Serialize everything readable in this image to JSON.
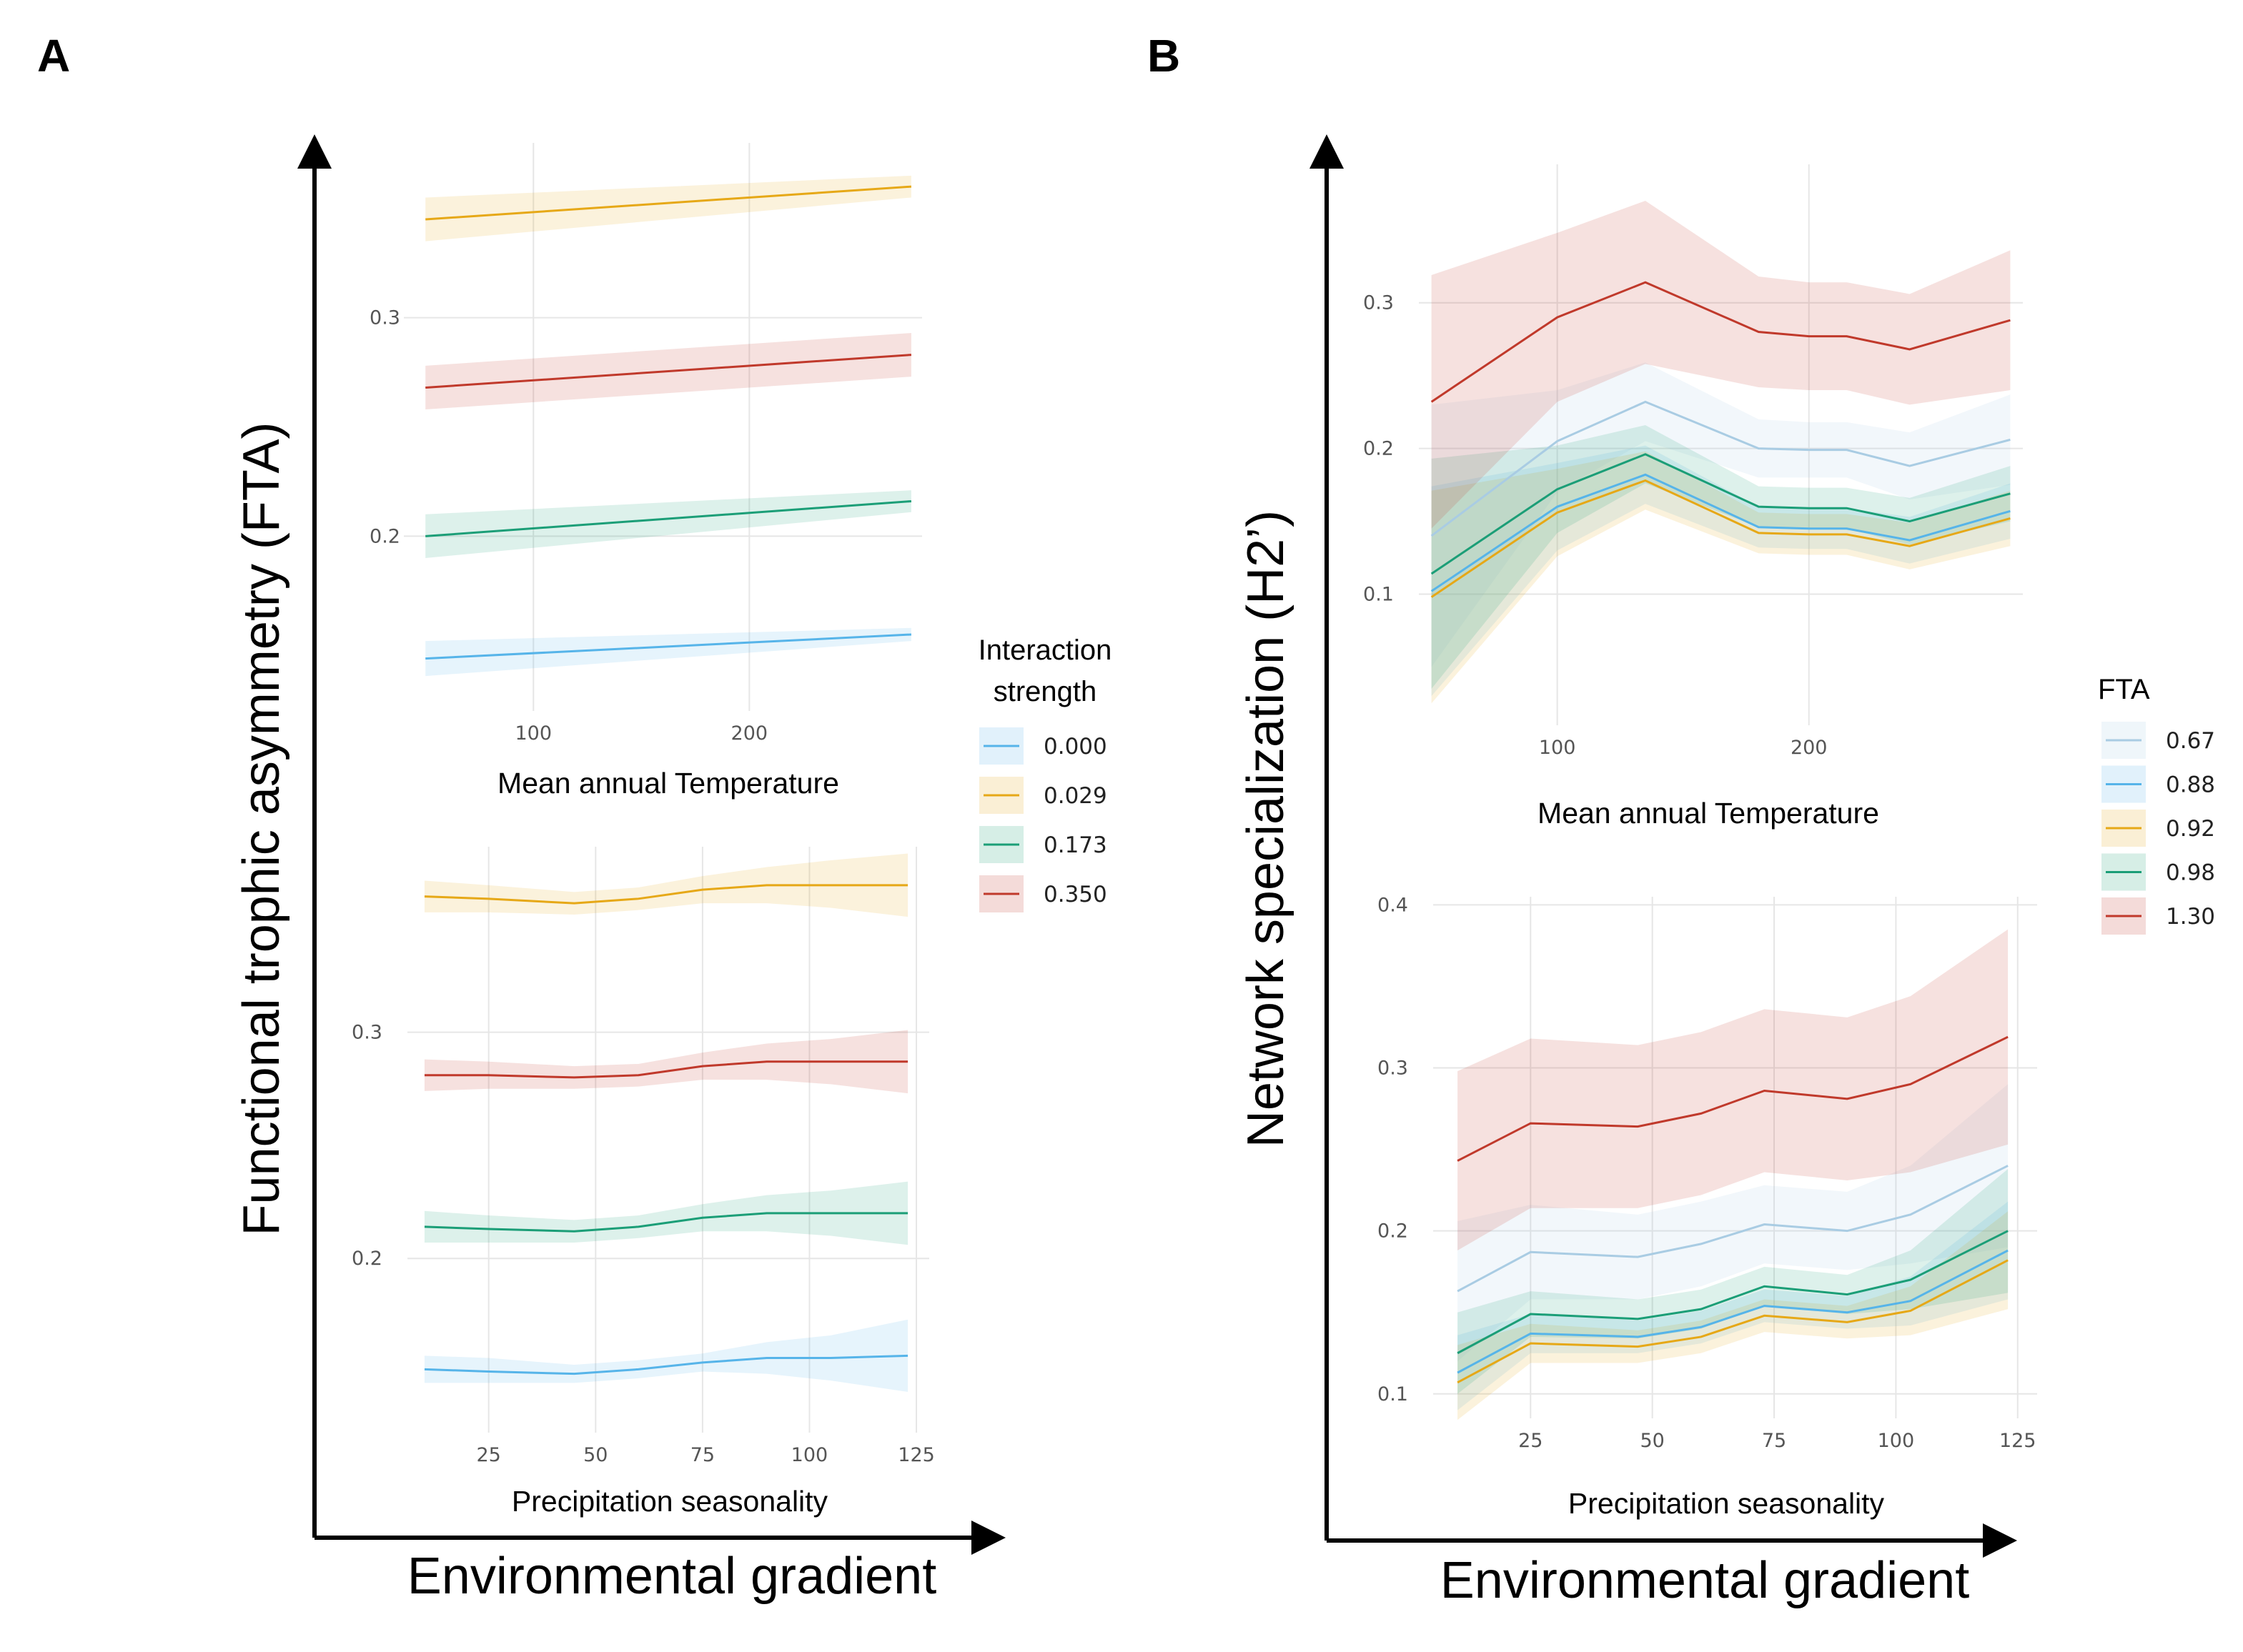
{
  "panels": {
    "A": {
      "letter": "A",
      "y_title": "Functional trophic asymmetry (FTA)",
      "x_title": "Environmental gradient",
      "legend_title": "Interaction strength",
      "legend": [
        {
          "label": "0.000",
          "color": "#56B4E9"
        },
        {
          "label": "0.029",
          "color": "#E6A817"
        },
        {
          "label": "0.173",
          "color": "#1B9E77"
        },
        {
          "label": "0.350",
          "color": "#C0392B"
        }
      ]
    },
    "B": {
      "letter": "B",
      "y_title": "Network specialization (H2’)",
      "x_title": "Environmental gradient",
      "legend_title": "FTA",
      "legend": [
        {
          "label": "0.67",
          "color": "#A9CCE3"
        },
        {
          "label": "0.88",
          "color": "#56B4E9"
        },
        {
          "label": "0.92",
          "color": "#E6A817"
        },
        {
          "label": "0.98",
          "color": "#1B9E77"
        },
        {
          "label": "1.30",
          "color": "#C0392B"
        }
      ]
    }
  },
  "chart_data": [
    {
      "type": "line",
      "panel": "A",
      "xlabel": "Mean annual Temperature",
      "xticks": [
        100,
        200
      ],
      "yticks": [
        0.2,
        0.3
      ],
      "xlim": [
        40,
        280
      ],
      "ylim": [
        0.12,
        0.38
      ],
      "x": [
        50,
        275
      ],
      "series": [
        {
          "name": "0.000",
          "color": "#56B4E9",
          "values": [
            0.144,
            0.155
          ],
          "lower": [
            0.136,
            0.152
          ],
          "upper": [
            0.152,
            0.158
          ]
        },
        {
          "name": "0.029",
          "color": "#E6A817",
          "values": [
            0.345,
            0.36
          ],
          "lower": [
            0.335,
            0.355
          ],
          "upper": [
            0.355,
            0.365
          ]
        },
        {
          "name": "0.173",
          "color": "#1B9E77",
          "values": [
            0.2,
            0.216
          ],
          "lower": [
            0.19,
            0.211
          ],
          "upper": [
            0.21,
            0.221
          ]
        },
        {
          "name": "0.350",
          "color": "#C0392B",
          "values": [
            0.268,
            0.283
          ],
          "lower": [
            0.258,
            0.273
          ],
          "upper": [
            0.278,
            0.293
          ]
        }
      ]
    },
    {
      "type": "line",
      "panel": "A",
      "xlabel": "Precipitation seasonality",
      "xticks": [
        25,
        50,
        75,
        100,
        125
      ],
      "yticks": [
        0.2,
        0.3
      ],
      "xlim": [
        6,
        128
      ],
      "ylim": [
        0.123,
        0.382
      ],
      "x": [
        10,
        25,
        45,
        60,
        75,
        90,
        105,
        123
      ],
      "series": [
        {
          "name": "0.000",
          "color": "#56B4E9",
          "values": [
            0.151,
            0.15,
            0.149,
            0.151,
            0.154,
            0.156,
            0.156,
            0.157
          ],
          "lower": [
            0.145,
            0.145,
            0.145,
            0.147,
            0.15,
            0.149,
            0.146,
            0.141
          ],
          "upper": [
            0.157,
            0.156,
            0.153,
            0.155,
            0.158,
            0.163,
            0.166,
            0.173
          ]
        },
        {
          "name": "0.029",
          "color": "#E6A817",
          "values": [
            0.36,
            0.359,
            0.357,
            0.359,
            0.363,
            0.365,
            0.365,
            0.365
          ],
          "lower": [
            0.353,
            0.353,
            0.352,
            0.354,
            0.357,
            0.357,
            0.355,
            0.351
          ],
          "upper": [
            0.367,
            0.365,
            0.362,
            0.364,
            0.369,
            0.373,
            0.376,
            0.379
          ]
        },
        {
          "name": "0.173",
          "color": "#1B9E77",
          "values": [
            0.214,
            0.213,
            0.212,
            0.214,
            0.218,
            0.22,
            0.22,
            0.22
          ],
          "lower": [
            0.207,
            0.207,
            0.207,
            0.209,
            0.212,
            0.212,
            0.21,
            0.206
          ],
          "upper": [
            0.221,
            0.219,
            0.217,
            0.219,
            0.224,
            0.228,
            0.23,
            0.234
          ]
        },
        {
          "name": "0.350",
          "color": "#C0392B",
          "values": [
            0.281,
            0.281,
            0.28,
            0.281,
            0.285,
            0.287,
            0.287,
            0.287
          ],
          "lower": [
            0.274,
            0.275,
            0.275,
            0.276,
            0.279,
            0.279,
            0.277,
            0.273
          ],
          "upper": [
            0.288,
            0.287,
            0.285,
            0.286,
            0.291,
            0.295,
            0.297,
            0.301
          ]
        }
      ]
    },
    {
      "type": "line",
      "panel": "B",
      "xlabel": "Mean annual Temperature",
      "xticks": [
        100,
        200
      ],
      "yticks": [
        0.1,
        0.2,
        0.3
      ],
      "xlim": [
        45,
        285
      ],
      "ylim": [
        0.01,
        0.395
      ],
      "x": [
        50,
        100,
        135,
        180,
        200,
        215,
        240,
        280
      ],
      "series": [
        {
          "name": "0.67",
          "color": "#A9CCE3",
          "values": [
            0.14,
            0.205,
            0.232,
            0.2,
            0.199,
            0.199,
            0.188,
            0.206
          ],
          "lower": [
            0.05,
            0.17,
            0.205,
            0.18,
            0.18,
            0.18,
            0.165,
            0.175
          ],
          "upper": [
            0.23,
            0.24,
            0.259,
            0.22,
            0.218,
            0.218,
            0.211,
            0.237
          ]
        },
        {
          "name": "0.88",
          "color": "#56B4E9",
          "values": [
            0.102,
            0.16,
            0.182,
            0.146,
            0.145,
            0.145,
            0.137,
            0.157
          ],
          "lower": [
            0.03,
            0.13,
            0.162,
            0.132,
            0.131,
            0.131,
            0.121,
            0.138
          ],
          "upper": [
            0.174,
            0.19,
            0.202,
            0.16,
            0.159,
            0.159,
            0.153,
            0.176
          ]
        },
        {
          "name": "0.92",
          "color": "#E6A817",
          "values": [
            0.098,
            0.156,
            0.178,
            0.142,
            0.141,
            0.141,
            0.133,
            0.152
          ],
          "lower": [
            0.025,
            0.126,
            0.158,
            0.128,
            0.127,
            0.127,
            0.117,
            0.133
          ],
          "upper": [
            0.171,
            0.186,
            0.198,
            0.156,
            0.155,
            0.155,
            0.149,
            0.171
          ]
        },
        {
          "name": "0.98",
          "color": "#1B9E77",
          "values": [
            0.114,
            0.172,
            0.196,
            0.16,
            0.159,
            0.159,
            0.15,
            0.169
          ],
          "lower": [
            0.035,
            0.142,
            0.176,
            0.146,
            0.145,
            0.145,
            0.134,
            0.15
          ],
          "upper": [
            0.193,
            0.202,
            0.216,
            0.174,
            0.173,
            0.173,
            0.166,
            0.188
          ]
        },
        {
          "name": "1.30",
          "color": "#C0392B",
          "values": [
            0.232,
            0.29,
            0.314,
            0.28,
            0.277,
            0.277,
            0.268,
            0.288
          ],
          "lower": [
            0.145,
            0.232,
            0.258,
            0.242,
            0.24,
            0.24,
            0.23,
            0.24
          ],
          "upper": [
            0.319,
            0.348,
            0.37,
            0.318,
            0.314,
            0.314,
            0.306,
            0.336
          ]
        }
      ]
    },
    {
      "type": "line",
      "panel": "B",
      "xlabel": "Precipitation seasonality",
      "xticks": [
        25,
        50,
        75,
        100,
        125
      ],
      "yticks": [
        0.1,
        0.2,
        0.3,
        0.4
      ],
      "xlim": [
        5,
        129
      ],
      "ylim": [
        0.085,
        0.405
      ],
      "x": [
        10,
        25,
        47,
        60,
        73,
        90,
        103,
        123
      ],
      "series": [
        {
          "name": "0.67",
          "color": "#A9CCE3",
          "values": [
            0.163,
            0.187,
            0.184,
            0.192,
            0.204,
            0.2,
            0.21,
            0.24
          ],
          "lower": [
            0.12,
            0.158,
            0.158,
            0.166,
            0.18,
            0.176,
            0.18,
            0.19
          ],
          "upper": [
            0.206,
            0.216,
            0.21,
            0.218,
            0.228,
            0.224,
            0.24,
            0.29
          ]
        },
        {
          "name": "0.88",
          "color": "#56B4E9",
          "values": [
            0.113,
            0.137,
            0.135,
            0.141,
            0.154,
            0.15,
            0.157,
            0.188
          ],
          "lower": [
            0.09,
            0.125,
            0.125,
            0.131,
            0.144,
            0.14,
            0.142,
            0.158
          ],
          "upper": [
            0.136,
            0.149,
            0.145,
            0.151,
            0.164,
            0.16,
            0.172,
            0.218
          ]
        },
        {
          "name": "0.92",
          "color": "#E6A817",
          "values": [
            0.107,
            0.131,
            0.129,
            0.135,
            0.148,
            0.144,
            0.151,
            0.182
          ],
          "lower": [
            0.084,
            0.119,
            0.119,
            0.125,
            0.138,
            0.134,
            0.136,
            0.152
          ],
          "upper": [
            0.13,
            0.143,
            0.139,
            0.145,
            0.158,
            0.154,
            0.166,
            0.212
          ]
        },
        {
          "name": "0.98",
          "color": "#1B9E77",
          "values": [
            0.125,
            0.149,
            0.146,
            0.152,
            0.166,
            0.161,
            0.17,
            0.2
          ],
          "lower": [
            0.1,
            0.135,
            0.134,
            0.14,
            0.154,
            0.149,
            0.152,
            0.162
          ],
          "upper": [
            0.15,
            0.163,
            0.158,
            0.164,
            0.178,
            0.173,
            0.188,
            0.238
          ]
        },
        {
          "name": "1.30",
          "color": "#C0392B",
          "values": [
            0.243,
            0.266,
            0.264,
            0.272,
            0.286,
            0.281,
            0.29,
            0.319
          ],
          "lower": [
            0.188,
            0.214,
            0.214,
            0.222,
            0.236,
            0.231,
            0.236,
            0.253
          ],
          "upper": [
            0.298,
            0.318,
            0.314,
            0.322,
            0.336,
            0.331,
            0.344,
            0.385
          ]
        }
      ]
    }
  ]
}
